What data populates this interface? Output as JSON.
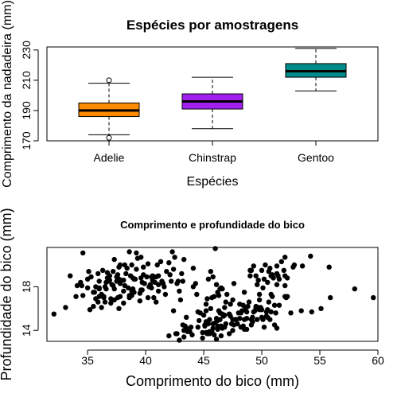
{
  "chart_data": [
    {
      "type": "box",
      "title": "Espécies por amostragens",
      "xlabel": "Espécies",
      "ylabel": "Comprimento da nadadeira (mm)",
      "categories": [
        "Adelie",
        "Chinstrap",
        "Gentoo"
      ],
      "colors": [
        "#FF8C00",
        "#A020F0",
        "#008B8B"
      ],
      "yticks": [
        170,
        190,
        210,
        230
      ],
      "ylim": [
        170,
        232
      ],
      "boxes": [
        {
          "name": "Adelie",
          "whisker_low": 174,
          "q1": 186,
          "median": 190,
          "q3": 195,
          "whisker_high": 208,
          "outliers": [
            210,
            172
          ]
        },
        {
          "name": "Chinstrap",
          "whisker_low": 178,
          "q1": 191,
          "median": 196,
          "q3": 201,
          "whisker_high": 212,
          "outliers": []
        },
        {
          "name": "Gentoo",
          "whisker_low": 203,
          "q1": 212,
          "median": 216,
          "q3": 221,
          "whisker_high": 231,
          "outliers": []
        }
      ]
    },
    {
      "type": "scatter",
      "title": "Comprimento e profundidade do bico",
      "xlabel": "Comprimento do bico (mm)",
      "ylabel": "Profundidade do bico (mm)",
      "xticks": [
        35,
        40,
        45,
        50,
        55,
        60
      ],
      "yticks": [
        14,
        18
      ],
      "xlim": [
        31.5,
        60
      ],
      "ylim": [
        13.0,
        21.6
      ],
      "points": [
        [
          32.1,
          15.5
        ],
        [
          33.1,
          16.1
        ],
        [
          33.5,
          19.0
        ],
        [
          34.0,
          17.1
        ],
        [
          34.1,
          18.1
        ],
        [
          34.4,
          18.4
        ],
        [
          34.5,
          18.1
        ],
        [
          34.6,
          21.1
        ],
        [
          34.6,
          17.2
        ],
        [
          35.0,
          17.9
        ],
        [
          35.1,
          19.4
        ],
        [
          35.2,
          15.9
        ],
        [
          35.3,
          18.9
        ],
        [
          35.5,
          17.5
        ],
        [
          35.5,
          16.2
        ],
        [
          35.6,
          17.5
        ],
        [
          35.7,
          16.9
        ],
        [
          35.7,
          18.0
        ],
        [
          35.9,
          16.6
        ],
        [
          35.9,
          19.2
        ],
        [
          36.0,
          17.8
        ],
        [
          36.0,
          18.5
        ],
        [
          36.0,
          17.1
        ],
        [
          36.0,
          17.9
        ],
        [
          36.2,
          16.1
        ],
        [
          36.2,
          17.2
        ],
        [
          36.2,
          17.3
        ],
        [
          36.3,
          19.5
        ],
        [
          36.4,
          17.0
        ],
        [
          36.4,
          17.1
        ],
        [
          36.5,
          18.0
        ],
        [
          36.5,
          16.6
        ],
        [
          36.6,
          17.8
        ],
        [
          36.6,
          18.4
        ],
        [
          36.7,
          19.3
        ],
        [
          36.7,
          18.8
        ],
        [
          36.8,
          18.5
        ],
        [
          36.9,
          18.6
        ],
        [
          37.0,
          16.9
        ],
        [
          37.0,
          16.5
        ],
        [
          37.2,
          18.1
        ],
        [
          37.2,
          19.4
        ],
        [
          37.3,
          17.8
        ],
        [
          37.3,
          20.5
        ],
        [
          37.3,
          16.8
        ],
        [
          37.5,
          18.9
        ],
        [
          37.5,
          18.5
        ],
        [
          37.6,
          19.1
        ],
        [
          37.6,
          17.0
        ],
        [
          37.7,
          18.7
        ],
        [
          37.7,
          16.0
        ],
        [
          37.7,
          19.8
        ],
        [
          37.8,
          18.3
        ],
        [
          37.8,
          17.1
        ],
        [
          37.8,
          20.0
        ],
        [
          37.9,
          18.6
        ],
        [
          38.1,
          18.6
        ],
        [
          38.1,
          17.6
        ],
        [
          38.1,
          16.5
        ],
        [
          38.2,
          18.1
        ],
        [
          38.2,
          20.0
        ],
        [
          38.3,
          19.2
        ],
        [
          38.5,
          17.9
        ],
        [
          38.6,
          21.2
        ],
        [
          38.6,
          17.0
        ],
        [
          38.6,
          17.2
        ],
        [
          38.7,
          19.0
        ],
        [
          38.8,
          17.2
        ],
        [
          38.8,
          20.0
        ],
        [
          38.8,
          17.6
        ],
        [
          38.9,
          17.8
        ],
        [
          38.9,
          18.8
        ],
        [
          39.0,
          17.5
        ],
        [
          39.0,
          18.7
        ],
        [
          39.1,
          18.7
        ],
        [
          39.2,
          19.6
        ],
        [
          39.2,
          21.1
        ],
        [
          39.3,
          20.6
        ],
        [
          39.5,
          17.4
        ],
        [
          39.5,
          16.7
        ],
        [
          39.6,
          17.7
        ],
        [
          39.6,
          18.8
        ],
        [
          39.6,
          20.7
        ],
        [
          39.7,
          18.4
        ],
        [
          39.7,
          17.7
        ],
        [
          39.8,
          19.1
        ],
        [
          39.9,
          18.3
        ],
        [
          40.1,
          18.9
        ],
        [
          40.2,
          17.0
        ],
        [
          40.2,
          20.1
        ],
        [
          40.3,
          18.0
        ],
        [
          40.5,
          17.9
        ],
        [
          40.5,
          18.9
        ],
        [
          40.6,
          18.6
        ],
        [
          40.6,
          19.0
        ],
        [
          40.7,
          17.0
        ],
        [
          40.8,
          18.4
        ],
        [
          40.9,
          16.6
        ],
        [
          40.9,
          18.9
        ],
        [
          41.0,
          20.0
        ],
        [
          41.1,
          17.6
        ],
        [
          41.1,
          19.0
        ],
        [
          41.1,
          18.2
        ],
        [
          41.3,
          20.3
        ],
        [
          41.4,
          18.5
        ],
        [
          41.5,
          18.3
        ],
        [
          41.6,
          18.0
        ],
        [
          41.8,
          19.4
        ],
        [
          42.0,
          20.2
        ],
        [
          42.1,
          19.1
        ],
        [
          42.2,
          18.5
        ],
        [
          42.3,
          21.2
        ],
        [
          42.5,
          20.7
        ],
        [
          42.7,
          18.3
        ],
        [
          42.8,
          18.5
        ],
        [
          42.9,
          17.6
        ],
        [
          43.1,
          19.2
        ],
        [
          43.2,
          18.5
        ],
        [
          43.3,
          20.5
        ],
        [
          44.1,
          19.7
        ],
        [
          44.1,
          18.0
        ],
        [
          45.8,
          18.9
        ],
        [
          46.0,
          21.5
        ],
        [
          42.0,
          13.5
        ],
        [
          42.6,
          13.7
        ],
        [
          42.7,
          13.7
        ],
        [
          42.9,
          13.1
        ],
        [
          43.2,
          14.5
        ],
        [
          43.3,
          13.4
        ],
        [
          43.3,
          14.0
        ],
        [
          43.4,
          14.4
        ],
        [
          43.5,
          14.2
        ],
        [
          43.5,
          15.2
        ],
        [
          43.6,
          13.9
        ],
        [
          43.8,
          13.9
        ],
        [
          44.0,
          13.6
        ],
        [
          44.4,
          17.3
        ],
        [
          44.5,
          14.3
        ],
        [
          44.5,
          15.7
        ],
        [
          44.9,
          13.3
        ],
        [
          44.9,
          13.8
        ],
        [
          45.0,
          15.4
        ],
        [
          45.1,
          14.5
        ],
        [
          45.2,
          13.8
        ],
        [
          45.2,
          14.8
        ],
        [
          45.2,
          16.4
        ],
        [
          45.2,
          15.8
        ],
        [
          45.3,
          13.7
        ],
        [
          45.3,
          13.8
        ],
        [
          45.4,
          14.6
        ],
        [
          45.4,
          18.7
        ],
        [
          45.5,
          13.7
        ],
        [
          45.5,
          13.9
        ],
        [
          45.5,
          15.0
        ],
        [
          45.6,
          19.4
        ],
        [
          45.7,
          13.9
        ],
        [
          45.7,
          17.0
        ],
        [
          45.8,
          14.2
        ],
        [
          45.8,
          14.6
        ],
        [
          45.9,
          17.1
        ],
        [
          46.1,
          13.2
        ],
        [
          46.1,
          15.1
        ],
        [
          46.1,
          18.2
        ],
        [
          46.2,
          14.1
        ],
        [
          46.2,
          14.4
        ],
        [
          46.2,
          14.9
        ],
        [
          46.2,
          17.5
        ],
        [
          46.3,
          15.8
        ],
        [
          46.4,
          15.0
        ],
        [
          46.4,
          15.6
        ],
        [
          46.4,
          17.8
        ],
        [
          46.5,
          13.5
        ],
        [
          46.5,
          14.4
        ],
        [
          46.5,
          17.9
        ],
        [
          46.6,
          14.2
        ],
        [
          46.6,
          17.8
        ],
        [
          46.7,
          15.3
        ],
        [
          46.8,
          14.3
        ],
        [
          46.8,
          15.4
        ],
        [
          46.8,
          16.1
        ],
        [
          46.9,
          14.6
        ],
        [
          46.9,
          16.6
        ],
        [
          47.0,
          17.3
        ],
        [
          47.2,
          13.7
        ],
        [
          47.2,
          15.5
        ],
        [
          47.3,
          15.3
        ],
        [
          47.4,
          14.6
        ],
        [
          47.5,
          14.0
        ],
        [
          47.5,
          15.0
        ],
        [
          47.5,
          16.8
        ],
        [
          47.6,
          14.5
        ],
        [
          47.6,
          18.3
        ],
        [
          47.7,
          15.0
        ],
        [
          47.8,
          15.0
        ],
        [
          48.1,
          15.1
        ],
        [
          48.1,
          16.4
        ],
        [
          48.2,
          14.3
        ],
        [
          48.2,
          15.6
        ],
        [
          48.4,
          14.4
        ],
        [
          48.4,
          16.3
        ],
        [
          48.5,
          14.1
        ],
        [
          48.5,
          15.0
        ],
        [
          48.5,
          17.5
        ],
        [
          48.6,
          16.0
        ],
        [
          48.7,
          14.1
        ],
        [
          48.7,
          15.1
        ],
        [
          48.7,
          15.7
        ],
        [
          48.8,
          16.2
        ],
        [
          49.0,
          19.5
        ],
        [
          49.0,
          19.0
        ],
        [
          49.1,
          14.5
        ],
        [
          49.1,
          15.0
        ],
        [
          49.1,
          19.5
        ],
        [
          49.2,
          15.2
        ],
        [
          49.3,
          15.7
        ],
        [
          49.3,
          19.9
        ],
        [
          49.4,
          15.8
        ],
        [
          49.5,
          16.1
        ],
        [
          49.5,
          16.2
        ],
        [
          49.5,
          19.0
        ],
        [
          49.6,
          15.0
        ],
        [
          49.6,
          16.0
        ],
        [
          49.6,
          18.2
        ],
        [
          49.7,
          18.6
        ],
        [
          49.8,
          15.9
        ],
        [
          49.8,
          16.8
        ],
        [
          49.8,
          17.3
        ],
        [
          49.9,
          16.1
        ],
        [
          50.0,
          15.2
        ],
        [
          50.0,
          15.9
        ],
        [
          50.0,
          19.5
        ],
        [
          50.1,
          15.0
        ],
        [
          50.1,
          17.9
        ],
        [
          50.2,
          14.3
        ],
        [
          50.2,
          18.7
        ],
        [
          50.3,
          20.0
        ],
        [
          50.4,
          15.3
        ],
        [
          50.4,
          15.7
        ],
        [
          50.5,
          15.2
        ],
        [
          50.5,
          15.9
        ],
        [
          50.5,
          18.4
        ],
        [
          50.6,
          19.4
        ],
        [
          50.7,
          15.0
        ],
        [
          50.7,
          19.7
        ],
        [
          50.8,
          15.7
        ],
        [
          50.8,
          17.3
        ],
        [
          50.8,
          19.0
        ],
        [
          50.9,
          17.1
        ],
        [
          50.9,
          19.1
        ],
        [
          51.0,
          18.8
        ],
        [
          51.1,
          14.5
        ],
        [
          51.1,
          16.3
        ],
        [
          51.3,
          14.2
        ],
        [
          51.3,
          18.2
        ],
        [
          51.3,
          19.2
        ],
        [
          51.3,
          19.9
        ],
        [
          51.4,
          19.0
        ],
        [
          51.5,
          16.3
        ],
        [
          51.5,
          18.7
        ],
        [
          51.7,
          20.3
        ],
        [
          51.9,
          19.5
        ],
        [
          52.0,
          17.1
        ],
        [
          52.0,
          18.1
        ],
        [
          52.0,
          19.0
        ],
        [
          52.0,
          20.7
        ],
        [
          52.1,
          17.0
        ],
        [
          52.2,
          17.1
        ],
        [
          52.2,
          18.8
        ],
        [
          52.5,
          15.6
        ],
        [
          52.7,
          19.8
        ],
        [
          52.8,
          20.0
        ],
        [
          53.4,
          15.8
        ],
        [
          53.5,
          19.9
        ],
        [
          54.2,
          20.8
        ],
        [
          54.3,
          15.7
        ],
        [
          55.1,
          16.0
        ],
        [
          55.8,
          19.8
        ],
        [
          55.9,
          17.0
        ],
        [
          58.0,
          17.8
        ],
        [
          59.6,
          17.0
        ],
        [
          45.1,
          14.4
        ],
        [
          45.3,
          16.9
        ],
        [
          45.6,
          16.0
        ],
        [
          45.9,
          13.6
        ],
        [
          46.0,
          14.7
        ],
        [
          46.3,
          17.2
        ],
        [
          46.6,
          15.5
        ],
        [
          47.3,
          16.4
        ],
        [
          48.0,
          15.6
        ],
        [
          48.9,
          16.6
        ],
        [
          49.2,
          14.8
        ],
        [
          49.7,
          16.1
        ],
        [
          50.6,
          16.6
        ],
        [
          51.2,
          15.6
        ],
        [
          42.4,
          15.8
        ],
        [
          43.9,
          14.3
        ],
        [
          44.6,
          14.9
        ],
        [
          44.7,
          15.6
        ],
        [
          47.9,
          14.6
        ],
        [
          48.3,
          15.8
        ],
        [
          36.9,
          19.0
        ],
        [
          38.4,
          19.7
        ],
        [
          39.8,
          19.8
        ],
        [
          40.4,
          18.2
        ],
        [
          41.7,
          17.3
        ],
        [
          42.4,
          19.6
        ],
        [
          43.0,
          16.8
        ],
        [
          44.3,
          18.3
        ],
        [
          35.0,
          18.7
        ],
        [
          37.1,
          18.2
        ]
      ]
    }
  ]
}
